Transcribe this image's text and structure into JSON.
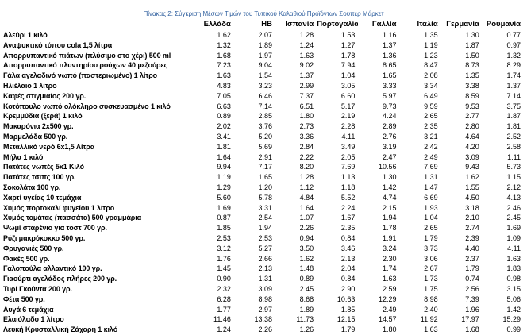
{
  "caption": "Πίνακας 2: Σύγκριση Μέσων Τιμών του Τυπικού Καλαθιού Προϊόντων Σουπερ Μάρκετ",
  "table": {
    "headers": [
      "Ελλάδα",
      "ΗΒ",
      "Ισπανία",
      "Πορτογαλία",
      "Γαλλία",
      "Ιταλία",
      "Γερμανία",
      "Ρουμανία"
    ],
    "rows": [
      {
        "name": "Αλεύρι 1 κιλό",
        "values": [
          "1.62",
          "2.07",
          "1.28",
          "1.53",
          "1.16",
          "1.35",
          "1.30",
          "0.77"
        ]
      },
      {
        "name": "Αναψυκτικό τύπου cola 1,5 λίτρα",
        "values": [
          "1.32",
          "1.89",
          "1.24",
          "1.27",
          "1.37",
          "1.19",
          "1.87",
          "0.97"
        ]
      },
      {
        "name": "Απορρυπαντικό πιάτων (πλύσιμο στο χέρι) 500 ml",
        "values": [
          "1.68",
          "1.97",
          "1.63",
          "1.78",
          "1.36",
          "1.23",
          "1.50",
          "1.32"
        ]
      },
      {
        "name": "Απορρυπαντικό πλυντηρίου ρούχων 40 μεζούρες",
        "values": [
          "7.23",
          "9.04",
          "9.02",
          "7.94",
          "8.65",
          "8.47",
          "8.73",
          "8.29"
        ]
      },
      {
        "name": "Γάλα αγελαδινό νωπό (παστεριωμένο) 1 λίτρο",
        "values": [
          "1.63",
          "1.54",
          "1.37",
          "1.04",
          "1.65",
          "2.08",
          "1.35",
          "1.74"
        ]
      },
      {
        "name": "Ηλιέλαιο 1 λίτρο",
        "values": [
          "4.83",
          "3.23",
          "2.99",
          "3.05",
          "3.33",
          "3.34",
          "3.38",
          "1.37"
        ]
      },
      {
        "name": "Καφές στιγμιαίος 200 γρ.",
        "values": [
          "7.05",
          "6.46",
          "7.37",
          "6.60",
          "5.97",
          "6.49",
          "8.59",
          "7.14"
        ]
      },
      {
        "name": "Κοτόπουλο νωπό ολόκληρο συσκευασμένο 1 κιλό",
        "values": [
          "6.63",
          "7.14",
          "6.51",
          "5.17",
          "9.73",
          "9.59",
          "9.53",
          "3.75"
        ]
      },
      {
        "name": "Κρεμμύδια (ξερά) 1 κιλό",
        "values": [
          "0.89",
          "2.85",
          "1.80",
          "2.19",
          "4.24",
          "2.65",
          "2.77",
          "1.87"
        ]
      },
      {
        "name": "Μακαρόνια 2x500 γρ.",
        "values": [
          "2.02",
          "3.76",
          "2.73",
          "2.28",
          "2.89",
          "2.35",
          "2.80",
          "1.81"
        ]
      },
      {
        "name": "Μαρμελάδα 500 γρ.",
        "values": [
          "3.41",
          "5.20",
          "3.36",
          "4.11",
          "2.76",
          "3.21",
          "4.64",
          "2.52"
        ]
      },
      {
        "name": "Μεταλλικό νερό 6x1,5 Λίτρα",
        "values": [
          "1.81",
          "5.69",
          "2.84",
          "3.49",
          "3.19",
          "2.42",
          "4.20",
          "2.58"
        ]
      },
      {
        "name": "Μήλα 1 κιλό",
        "values": [
          "1.64",
          "2.91",
          "2.22",
          "2.05",
          "2.47",
          "2.49",
          "3.09",
          "1.11"
        ]
      },
      {
        "name": "Πατάτες νωπές 5x1 Κιλό",
        "values": [
          "9.94",
          "7.17",
          "8.20",
          "7.69",
          "10.56",
          "7.69",
          "9.43",
          "5.73"
        ]
      },
      {
        "name": "Πατάτες τσιπς 100 γρ.",
        "values": [
          "1.19",
          "1.65",
          "1.28",
          "1.13",
          "1.30",
          "1.31",
          "1.62",
          "1.15"
        ]
      },
      {
        "name": "Σοκολάτα 100 γρ.",
        "values": [
          "1.29",
          "1.20",
          "1.12",
          "1.18",
          "1.42",
          "1.47",
          "1.55",
          "2.12"
        ]
      },
      {
        "name": "Χαρτί υγείας 10 τεμάχια",
        "values": [
          "5.60",
          "5.78",
          "4.84",
          "5.52",
          "4.74",
          "6.69",
          "4.50",
          "4.13"
        ]
      },
      {
        "name": "Χυμός πορτοκαλί φυγείου 1 λίτρο",
        "values": [
          "1.69",
          "3.31",
          "1.64",
          "2.24",
          "2.15",
          "1.93",
          "3.18",
          "2.46"
        ]
      },
      {
        "name": "Χυμός τομάτας (πασσάτα) 500 γραμμάρια",
        "values": [
          "0.87",
          "2.54",
          "1.07",
          "1.67",
          "1.94",
          "1.04",
          "2.10",
          "2.45"
        ]
      },
      {
        "name": "Ψωμί σταρένιο για τοστ 700 γρ.",
        "values": [
          "1.85",
          "1.94",
          "2.26",
          "2.35",
          "1.78",
          "2.65",
          "2.74",
          "1.69"
        ]
      },
      {
        "name": "Ρύζι μακρύκοκκο 500 γρ.",
        "values": [
          "2.53",
          "2.53",
          "0.94",
          "0.84",
          "1.91",
          "1.79",
          "2.39",
          "1.09"
        ]
      },
      {
        "name": "Φρυγανιές 500 γρ.",
        "values": [
          "3.12",
          "5.27",
          "3.50",
          "3.46",
          "3.24",
          "3.73",
          "4.40",
          "4.11"
        ]
      },
      {
        "name": "Φακές 500 γρ.",
        "values": [
          "1.76",
          "2.66",
          "1.62",
          "2.13",
          "2.30",
          "3.06",
          "2.37",
          "1.63"
        ]
      },
      {
        "name": "Γαλοπούλα αλλαντικό 100 γρ.",
        "values": [
          "1.45",
          "2.13",
          "1.48",
          "2.04",
          "1.74",
          "2.67",
          "1.79",
          "1.83"
        ]
      },
      {
        "name": "Γιαούρτι αγελάδος πλήρες 200 γρ.",
        "values": [
          "0.90",
          "1.31",
          "0.89",
          "0.84",
          "1.63",
          "1.73",
          "0.74",
          "0.98"
        ]
      },
      {
        "name": "Τυρί Γκούντα 200 γρ.",
        "values": [
          "2.32",
          "3.09",
          "2.45",
          "2.90",
          "2.59",
          "1.75",
          "2.56",
          "3.15"
        ]
      },
      {
        "name": "Φέτα 500 γρ.",
        "values": [
          "6.28",
          "8.98",
          "8.68",
          "10.63",
          "12.29",
          "8.98",
          "7.39",
          "5.06"
        ]
      },
      {
        "name": "Αυγά 6 τεμάχια",
        "values": [
          "1.77",
          "2.97",
          "1.89",
          "1.85",
          "2.49",
          "2.40",
          "1.96",
          "1.42"
        ]
      },
      {
        "name": "Ελαιόλαδο 1 λίτρο",
        "values": [
          "11.46",
          "13.38",
          "11.73",
          "12.15",
          "14.57",
          "11.92",
          "17.97",
          "15.29"
        ]
      },
      {
        "name": "Λευκή Κρυσταλλική Ζάχαρη 1 κιλό",
        "values": [
          "1.24",
          "2.26",
          "1.26",
          "1.79",
          "1.80",
          "1.63",
          "1.68",
          "0.99"
        ]
      }
    ]
  }
}
